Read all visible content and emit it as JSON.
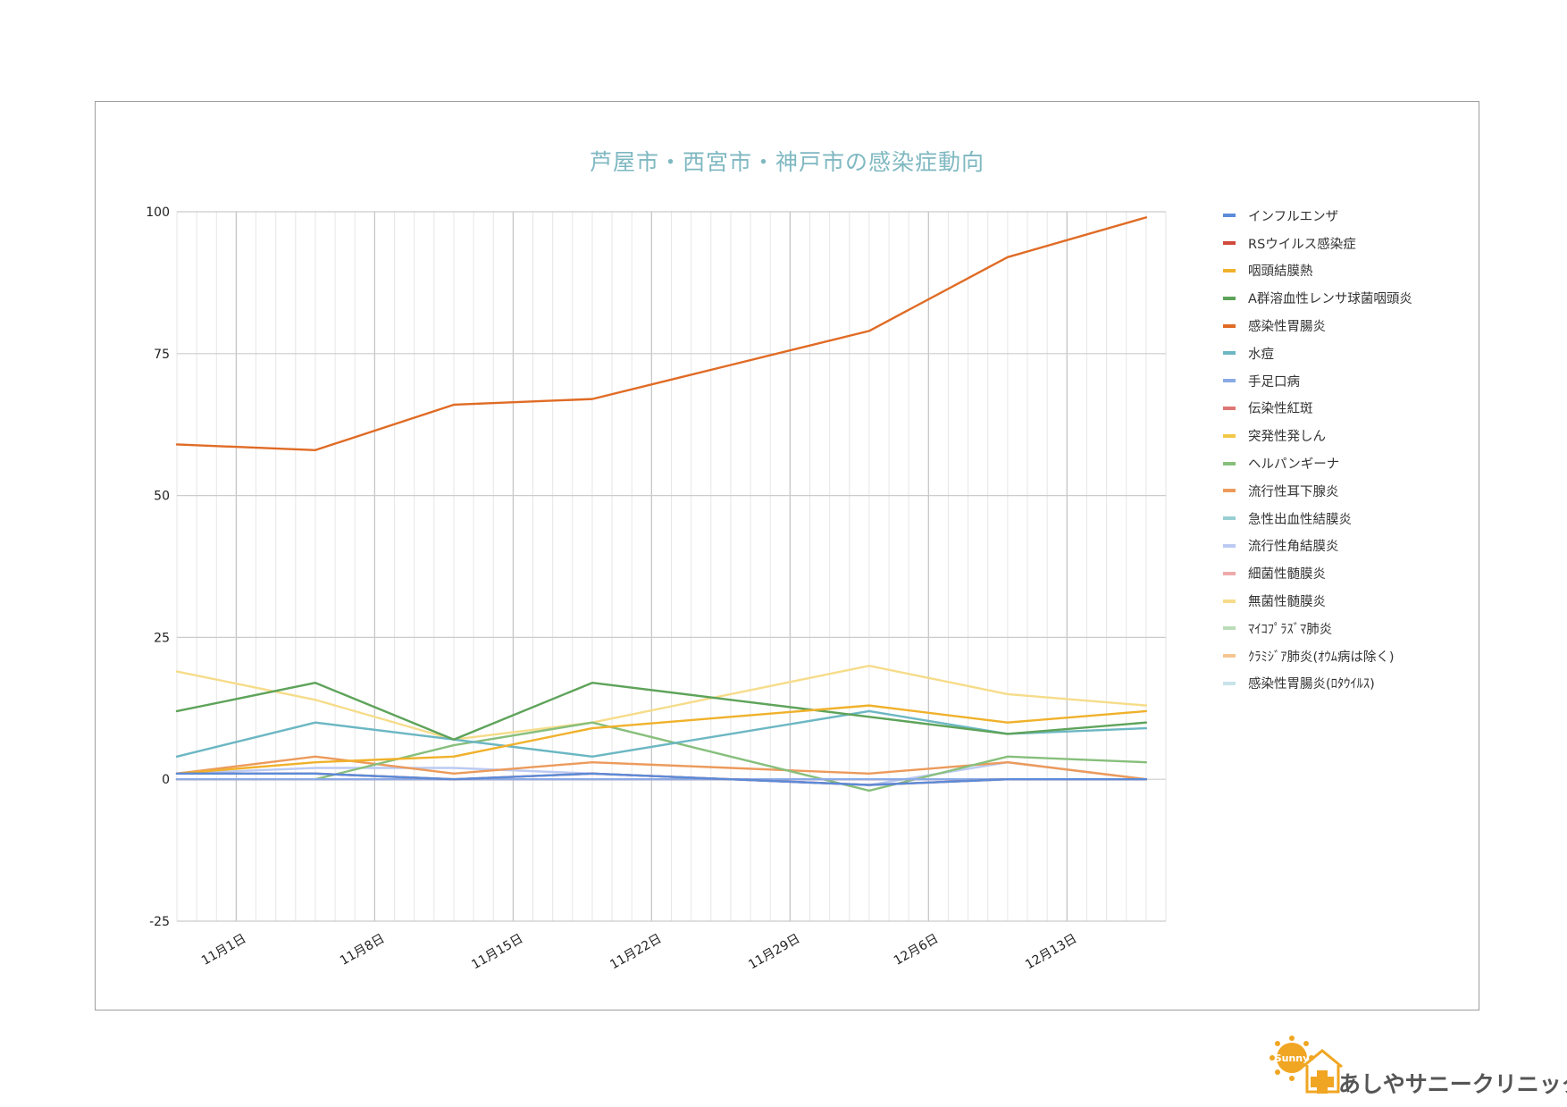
{
  "clinic": {
    "name": "あしやサニークリニック",
    "logo_text": "Sunny"
  },
  "colors": {
    "frame": "#9e9e9e",
    "title": "#7fb8c1",
    "grid": "#d9d9d9",
    "logo": "#f0a623"
  },
  "chart_data": {
    "type": "line",
    "title": "芦屋市・西宮市・神戸市の感染症動向",
    "xlabel": "",
    "ylabel": "",
    "ylim": [
      -25,
      100
    ],
    "yticks": [
      -25,
      0,
      25,
      50,
      75,
      100
    ],
    "xlim": [
      "2023-10-29",
      "2023-12-18"
    ],
    "xticks": [
      "2023-11-01",
      "2023-11-08",
      "2023-11-15",
      "2023-11-22",
      "2023-11-29",
      "2023-12-06",
      "2023-12-13"
    ],
    "xtick_labels": [
      "11月1日",
      "11月8日",
      "11月15日",
      "11月22日",
      "11月29日",
      "12月6日",
      "12月13日"
    ],
    "grid": true,
    "legend_position": "right",
    "x": [
      "2023-10-29",
      "2023-11-05",
      "2023-11-12",
      "2023-11-19",
      "2023-11-26",
      "2023-12-03",
      "2023-12-10",
      "2023-12-17"
    ],
    "series": [
      {
        "name": "インフルエンザ",
        "color": "#5b8bd9",
        "values": [
          1,
          1,
          0,
          1,
          0,
          -1,
          0,
          0
        ]
      },
      {
        "name": "RSウイルス感染症",
        "color": "#d04a3c",
        "values": [
          1,
          1,
          0,
          1,
          0,
          -1,
          0,
          0
        ]
      },
      {
        "name": "咽頭結膜熱",
        "color": "#f0b12b",
        "values": [
          1,
          3,
          4,
          9,
          11,
          13,
          10,
          12
        ]
      },
      {
        "name": "A群溶血性レンサ球菌咽頭炎",
        "color": "#5ea35a",
        "values": [
          12,
          17,
          7,
          17,
          14,
          11,
          8,
          10
        ]
      },
      {
        "name": "感染性胃腸炎",
        "color": "#e06b25",
        "values": [
          59,
          58,
          66,
          67,
          73,
          79,
          92,
          99
        ]
      },
      {
        "name": "水痘",
        "color": "#6cb7c3",
        "values": [
          4,
          10,
          7,
          4,
          8,
          12,
          8,
          9
        ]
      },
      {
        "name": "手足口病",
        "color": "#8aaae6",
        "values": [
          0,
          0,
          0,
          0,
          0,
          0,
          0,
          0
        ]
      },
      {
        "name": "伝染性紅斑",
        "color": "#dd7773",
        "values": [
          0,
          0,
          0,
          0,
          0,
          0,
          0,
          0
        ]
      },
      {
        "name": "突発性発しん",
        "color": "#f3c746",
        "values": [
          0,
          0,
          0,
          0,
          0,
          0,
          0,
          0
        ]
      },
      {
        "name": "ヘルパンギーナ",
        "color": "#87bf7c",
        "values": [
          0,
          0,
          6,
          10,
          4,
          -2,
          4,
          3
        ]
      },
      {
        "name": "流行性耳下腺炎",
        "color": "#ec9a5b",
        "values": [
          1,
          4,
          1,
          3,
          2,
          1,
          3,
          0
        ]
      },
      {
        "name": "急性出血性結膜炎",
        "color": "#98cfd3",
        "values": [
          0,
          0,
          0,
          0,
          0,
          0,
          0,
          0
        ]
      },
      {
        "name": "流行性角結膜炎",
        "color": "#bccaf2",
        "values": [
          1,
          2,
          2,
          1,
          0,
          -1,
          3,
          0
        ]
      },
      {
        "name": "細菌性髄膜炎",
        "color": "#eeaaaa",
        "values": [
          0,
          0,
          0,
          0,
          0,
          0,
          0,
          0
        ]
      },
      {
        "name": "無菌性髄膜炎",
        "color": "#f6dc8a",
        "values": [
          19,
          14,
          7,
          10,
          15,
          20,
          15,
          13
        ]
      },
      {
        "name": "ﾏｲｺﾌﾟﾗｽﾞﾏ肺炎",
        "color": "#bcdcb8",
        "values": [
          0,
          0,
          0,
          0,
          0,
          0,
          0,
          0
        ]
      },
      {
        "name": "ｸﾗﾐｼﾞｱ肺炎(ｵｳﾑ病は除く)",
        "color": "#f5c592",
        "values": [
          0,
          0,
          0,
          0,
          0,
          0,
          0,
          0
        ]
      },
      {
        "name": "感染性胃腸炎(ﾛﾀｳｲﾙｽ)",
        "color": "#c8e3ea",
        "values": [
          0,
          0,
          0,
          0,
          0,
          0,
          0,
          0
        ]
      }
    ]
  }
}
